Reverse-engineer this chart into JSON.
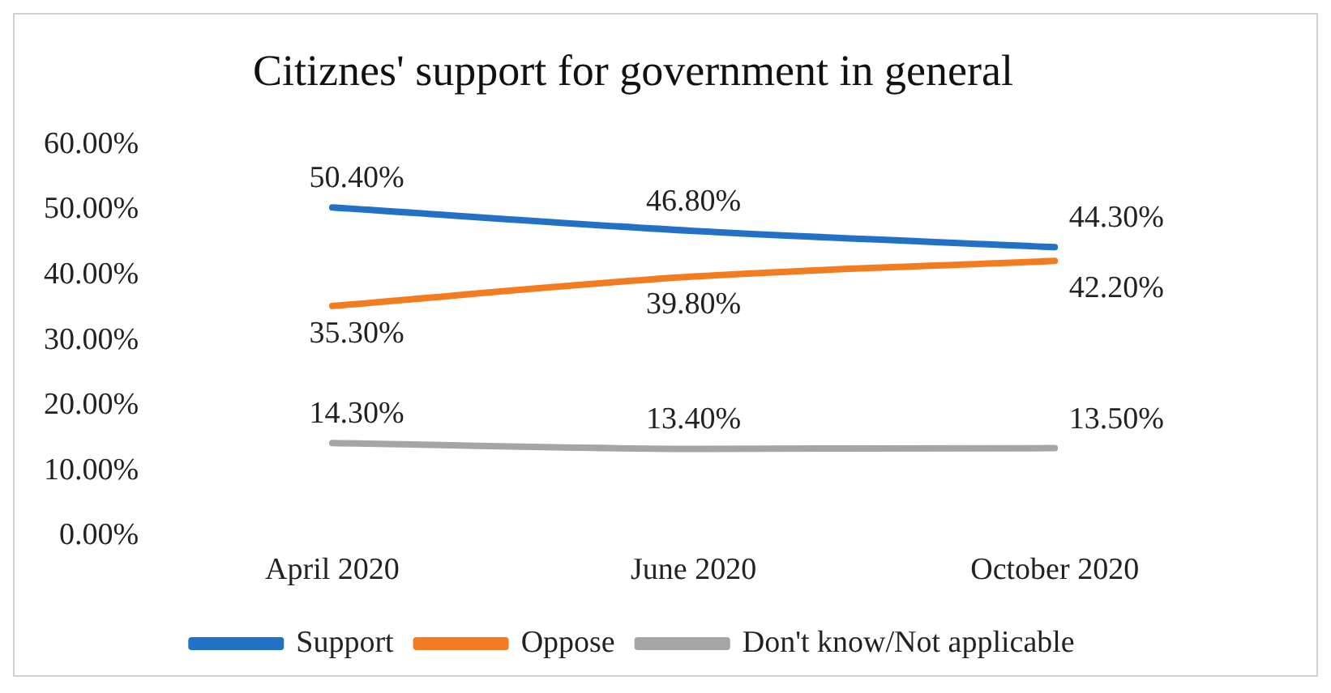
{
  "chart_data": {
    "type": "line",
    "title": "Citiznes' support for government in general",
    "categories": [
      "April 2020",
      "June 2020",
      "October 2020"
    ],
    "series": [
      {
        "name": "Support",
        "color": "#2271c4",
        "values": [
          50.4,
          46.8,
          44.3
        ],
        "value_labels": [
          "50.40%",
          "46.80%",
          "44.30%"
        ]
      },
      {
        "name": "Oppose",
        "color": "#f47c20",
        "values": [
          35.3,
          39.8,
          42.2
        ],
        "value_labels": [
          "35.30%",
          "39.80%",
          "42.20%"
        ]
      },
      {
        "name": "Don't know/Not applicable",
        "color": "#a5a5a5",
        "values": [
          14.3,
          13.4,
          13.5
        ],
        "value_labels": [
          "14.30%",
          "13.40%",
          "13.50%"
        ]
      }
    ],
    "ylim": [
      0,
      60
    ],
    "yticks": [
      {
        "value": 0,
        "label": "0.00%"
      },
      {
        "value": 10,
        "label": "10.00%"
      },
      {
        "value": 20,
        "label": "20.00%"
      },
      {
        "value": 30,
        "label": "30.00%"
      },
      {
        "value": 40,
        "label": "40.00%"
      },
      {
        "value": 50,
        "label": "50.00%"
      },
      {
        "value": 60,
        "label": "60.00%"
      }
    ],
    "grid": false,
    "legend": "bottom",
    "marker": "none",
    "line_style": "solid"
  }
}
